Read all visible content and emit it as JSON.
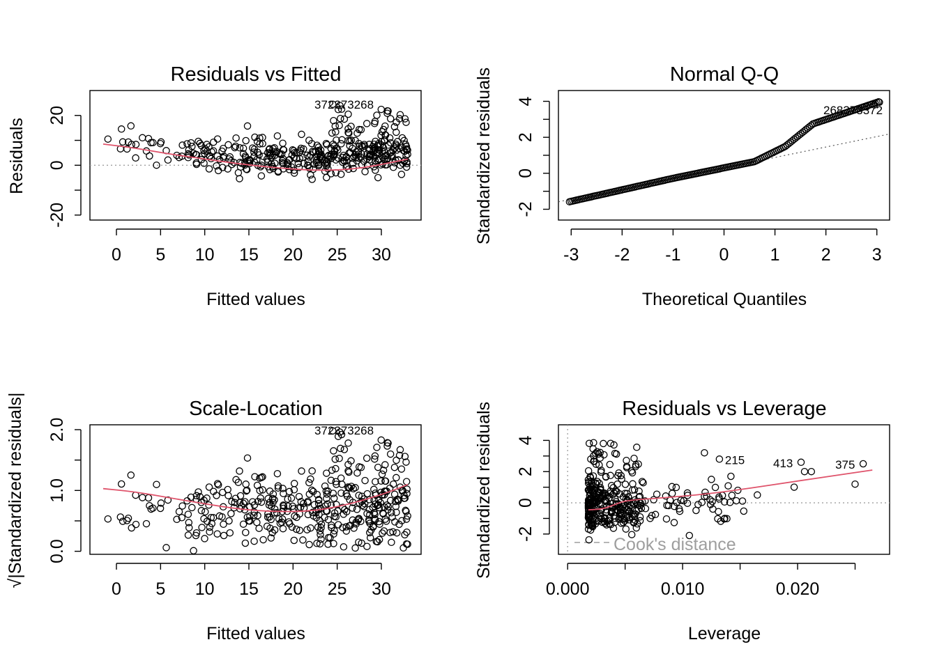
{
  "colors": {
    "points": "#000000",
    "smooth": "#DF536B",
    "refline": "#9E9E9E",
    "axis": "#000000"
  },
  "chart_data": [
    {
      "id": "rvf",
      "type": "scatter",
      "title": "Residuals vs Fitted",
      "xlabel": "Fitted values",
      "ylabel": "Residuals",
      "xlim": [
        -3,
        34.5
      ],
      "ylim": [
        -22,
        30
      ],
      "xticks": [
        0,
        5,
        10,
        15,
        20,
        25,
        30
      ],
      "yticks": [
        -20,
        -10,
        0,
        10,
        20
      ],
      "ytick_labels": [
        "-20",
        "0",
        "20"
      ],
      "ytick_label_values": [
        -20,
        0,
        20
      ],
      "reference_line": {
        "type": "horizontal",
        "y": 0,
        "style": "dotted"
      },
      "smooth": {
        "x": [
          -1.5,
          2,
          6,
          10,
          14,
          18,
          22,
          25,
          28,
          31,
          33
        ],
        "y": [
          8.5,
          7,
          4.5,
          2.5,
          0.5,
          -1,
          -2,
          -2,
          -1,
          1,
          2.5
        ]
      },
      "labeled_points": [
        {
          "label": "372",
          "x": 24.5,
          "y": 24.5
        },
        {
          "label": "373",
          "x": 25.3,
          "y": 24
        },
        {
          "label": "268",
          "x": 25.5,
          "y": 22.5
        }
      ],
      "labels_text": "372373268"
    },
    {
      "id": "qq",
      "type": "scatter",
      "title": "Normal Q-Q",
      "xlabel": "Theoretical Quantiles",
      "ylabel": "Standardized residuals",
      "xlim": [
        -3.25,
        3.25
      ],
      "ylim": [
        -2.6,
        4.6
      ],
      "xticks": [
        -3,
        -2,
        -1,
        0,
        1,
        2,
        3
      ],
      "yticks": [
        -2,
        -1,
        0,
        1,
        2,
        3,
        4
      ],
      "ytick_labels": [
        "-2",
        "0",
        "2",
        "4"
      ],
      "ytick_label_values": [
        -2,
        0,
        2,
        4
      ],
      "reference_line": {
        "type": "qq",
        "slope": 0.58,
        "intercept": 0.3,
        "style": "dotted"
      },
      "labeled_points": [
        {
          "label": "372",
          "x": 3.05,
          "y": 3.95
        },
        {
          "label": "373",
          "x": 2.95,
          "y": 3.8
        },
        {
          "label": "268",
          "x": 2.8,
          "y": 3.7
        }
      ],
      "labels_text": "268373372"
    },
    {
      "id": "sl",
      "type": "scatter",
      "title": "Scale-Location",
      "xlabel": "Fitted values",
      "ylabel": "√|Standardized residuals|",
      "xlim": [
        -3,
        34.5
      ],
      "ylim": [
        -0.05,
        2.08
      ],
      "xticks": [
        0,
        5,
        10,
        15,
        20,
        25,
        30
      ],
      "yticks": [
        0,
        0.5,
        1.0,
        1.5,
        2.0
      ],
      "ytick_labels": [
        "0.0",
        "1.0",
        "2.0"
      ],
      "ytick_label_values": [
        0,
        1.0,
        2.0
      ],
      "smooth": {
        "x": [
          -1.5,
          2,
          6,
          10,
          14,
          18,
          22,
          25,
          28,
          31,
          33
        ],
        "y": [
          1.03,
          0.98,
          0.88,
          0.78,
          0.69,
          0.65,
          0.66,
          0.73,
          0.84,
          0.98,
          1.1
        ]
      },
      "labeled_points": [
        {
          "label": "372",
          "x": 24.5,
          "y": 1.98
        },
        {
          "label": "373",
          "x": 25.3,
          "y": 1.96
        },
        {
          "label": "268",
          "x": 25.5,
          "y": 1.92
        }
      ],
      "labels_text": "372373268"
    },
    {
      "id": "rvl",
      "type": "scatter",
      "title": "Residuals vs Leverage",
      "xlabel": "Leverage",
      "ylabel": "Standardized residuals",
      "xlim": [
        -0.0008,
        0.028
      ],
      "ylim": [
        -3.3,
        5.0
      ],
      "xticks": [
        0.0,
        0.005,
        0.01,
        0.015,
        0.02,
        0.025
      ],
      "xtick_labels": [
        "0.000",
        "0.010",
        "0.020"
      ],
      "xtick_label_values": [
        0.0,
        0.01,
        0.02
      ],
      "yticks": [
        -2,
        -1,
        0,
        1,
        2,
        3,
        4
      ],
      "ytick_labels": [
        "-2",
        "0",
        "2",
        "4"
      ],
      "ytick_label_values": [
        -2,
        0,
        2,
        4
      ],
      "reference_line": {
        "type": "horizontal",
        "y": 0,
        "style": "dotted"
      },
      "smooth": {
        "x": [
          0.0018,
          0.003,
          0.004,
          0.005,
          0.008,
          0.012,
          0.016,
          0.02,
          0.0265
        ],
        "y": [
          -0.45,
          -0.4,
          -0.15,
          0.15,
          0.3,
          0.55,
          0.95,
          1.4,
          2.1
        ]
      },
      "labeled_points": [
        {
          "label": "215",
          "x": 0.0132,
          "y": 2.8
        },
        {
          "label": "413",
          "x": 0.0203,
          "y": 2.6
        },
        {
          "label": "375",
          "x": 0.0257,
          "y": 2.5
        }
      ],
      "legend": {
        "text": "Cook's distance",
        "placement": "bottom-left"
      }
    }
  ]
}
